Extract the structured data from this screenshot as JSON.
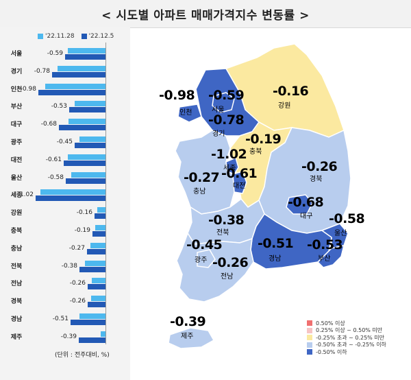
{
  "title": "< 시도별 아파트 매매가격지수 변동률 >",
  "legend": {
    "series_a": "'22.11.28",
    "series_b": "'22.12.5",
    "color_a": "#4db8ee",
    "color_b": "#2259b5"
  },
  "chart_data": {
    "type": "bar",
    "orientation": "horizontal",
    "categories": [
      "서울",
      "경기",
      "인천",
      "부산",
      "대구",
      "광주",
      "대전",
      "울산",
      "세종",
      "강원",
      "충북",
      "충남",
      "전북",
      "전남",
      "경북",
      "경남",
      "제주"
    ],
    "series": [
      {
        "name": "'22.11.28",
        "values": [
          -0.55,
          -0.7,
          -0.88,
          -0.45,
          -0.54,
          -0.38,
          -0.55,
          -0.5,
          -0.95,
          -0.12,
          -0.15,
          -0.22,
          -0.3,
          -0.2,
          -0.21,
          -0.38,
          -0.07
        ]
      },
      {
        "name": "'22.12.5",
        "values": [
          -0.59,
          -0.78,
          -0.98,
          -0.53,
          -0.68,
          -0.45,
          -0.61,
          -0.58,
          -1.02,
          -0.16,
          -0.19,
          -0.27,
          -0.38,
          -0.26,
          -0.26,
          -0.51,
          -0.39
        ]
      }
    ],
    "data_labels": [
      "-0.59",
      "-0.78",
      "-0.98",
      "-0.53",
      "-0.68",
      "-0.45",
      "-0.61",
      "-0.58",
      "-1.02",
      "-0.16",
      "-0.19",
      "-0.27",
      "-0.38",
      "-0.26",
      "-0.26",
      "-0.51",
      "-0.39"
    ]
  },
  "unit_note": "(단위 : 전주대비, %)",
  "map": {
    "regions": [
      {
        "name": "서울",
        "value": "-0.59"
      },
      {
        "name": "인천",
        "value": "-0.98"
      },
      {
        "name": "경기",
        "value": "-0.78"
      },
      {
        "name": "강원",
        "value": "-0.16"
      },
      {
        "name": "충북",
        "value": "-0.19"
      },
      {
        "name": "세종",
        "value": "-1.02"
      },
      {
        "name": "대전",
        "value": "-0.61"
      },
      {
        "name": "충남",
        "value": "-0.27"
      },
      {
        "name": "경북",
        "value": "-0.26"
      },
      {
        "name": "대구",
        "value": "-0.68"
      },
      {
        "name": "울산",
        "value": "-0.58"
      },
      {
        "name": "전북",
        "value": "-0.38"
      },
      {
        "name": "광주",
        "value": "-0.45"
      },
      {
        "name": "경남",
        "value": "-0.51"
      },
      {
        "name": "부산",
        "value": "-0.53"
      },
      {
        "name": "전남",
        "value": "-0.26"
      },
      {
        "name": "제주",
        "value": "-0.39"
      }
    ],
    "legend": [
      {
        "label": "0.50% 이상",
        "color": "#f07070"
      },
      {
        "label": "0.25% 이상 ~ 0.50% 미만",
        "color": "#f6c4c4"
      },
      {
        "label": "-0.25% 초과 ~ 0.25% 미만",
        "color": "#fbe9a0"
      },
      {
        "label": "-0.50% 초과 ~ -0.25% 이하",
        "color": "#b8cdee"
      },
      {
        "label": "-0.50% 이하",
        "color": "#3f66c4"
      }
    ],
    "colors": {
      "dark": "#3f66c4",
      "light": "#b8cdee",
      "yellow": "#fbe9a0"
    }
  }
}
